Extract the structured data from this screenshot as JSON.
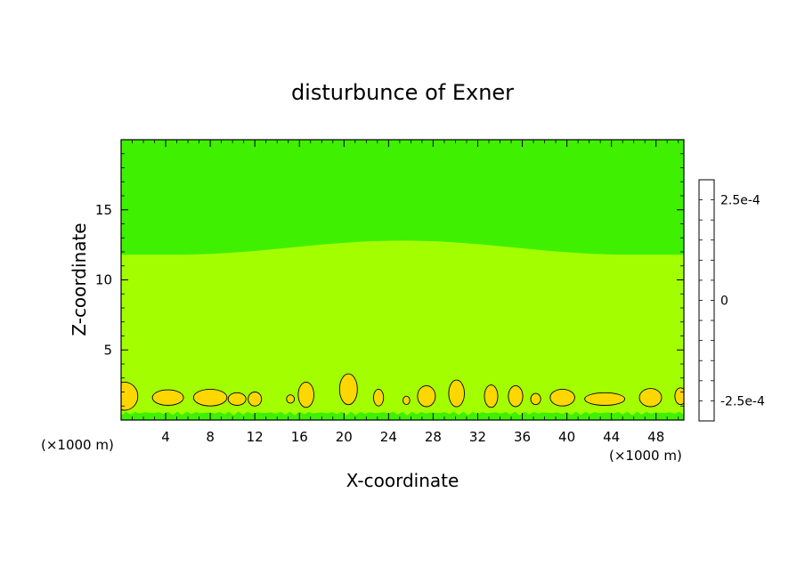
{
  "chart_data": {
    "type": "heatmap",
    "title": "disturbunce of Exner",
    "xlabel": "X-coordinate",
    "ylabel": "Z-coordinate",
    "x_unit_left": "(×1000 m)",
    "x_unit_right": "(×1000 m)",
    "xlim": [
      0,
      50.5
    ],
    "ylim": [
      0,
      20
    ],
    "x_ticks": [
      4,
      8,
      12,
      16,
      20,
      24,
      28,
      32,
      36,
      40,
      44,
      48
    ],
    "y_ticks": [
      5,
      10,
      15
    ],
    "colorbar": {
      "tick_labels": [
        "2.5e-4",
        "0",
        "-2.5e-4"
      ],
      "tick_values": [
        0.00025,
        0,
        -0.00025
      ],
      "levels": [
        -0.0003,
        -0.00025,
        -0.0002,
        -0.00015,
        -0.0001,
        -5e-05,
        0,
        5e-05,
        0.0001,
        0.00015,
        0.0002,
        0.00025,
        0.0003
      ],
      "colors": [
        "#7f18b1",
        "#1010c8",
        "#1d5cf0",
        "#13a9ef",
        "#00f0c0",
        "#16d760",
        "#3ff000",
        "#a3ff00",
        "#ffd700",
        "#ff7f00",
        "#ff2020",
        "#ff9999"
      ]
    },
    "upper_region": {
      "color": "#3ff000",
      "boundary_z_edges": 11.8,
      "boundary_z_center": 12.8
    },
    "middle_region": {
      "color": "#a3ff00"
    },
    "near_surface_band": {
      "color": "#3ff000",
      "z_max": 0.6
    },
    "positive_cells": {
      "color": "#ffd700",
      "cells": [
        {
          "x": 0.3,
          "z": 1.7,
          "rx": 1.2,
          "rz": 1.0
        },
        {
          "x": 4.2,
          "z": 1.6,
          "rx": 1.4,
          "rz": 0.55
        },
        {
          "x": 8.0,
          "z": 1.6,
          "rx": 1.5,
          "rz": 0.6
        },
        {
          "x": 10.4,
          "z": 1.5,
          "rx": 0.8,
          "rz": 0.45
        },
        {
          "x": 12.0,
          "z": 1.5,
          "rx": 0.6,
          "rz": 0.5
        },
        {
          "x": 15.2,
          "z": 1.5,
          "rx": 0.35,
          "rz": 0.3
        },
        {
          "x": 16.6,
          "z": 1.8,
          "rx": 0.7,
          "rz": 0.9
        },
        {
          "x": 20.4,
          "z": 2.2,
          "rx": 0.8,
          "rz": 1.1
        },
        {
          "x": 23.1,
          "z": 1.6,
          "rx": 0.45,
          "rz": 0.6
        },
        {
          "x": 25.6,
          "z": 1.4,
          "rx": 0.3,
          "rz": 0.3
        },
        {
          "x": 27.4,
          "z": 1.7,
          "rx": 0.8,
          "rz": 0.75
        },
        {
          "x": 30.1,
          "z": 1.9,
          "rx": 0.7,
          "rz": 0.95
        },
        {
          "x": 33.2,
          "z": 1.7,
          "rx": 0.6,
          "rz": 0.8
        },
        {
          "x": 35.4,
          "z": 1.7,
          "rx": 0.65,
          "rz": 0.75
        },
        {
          "x": 37.2,
          "z": 1.5,
          "rx": 0.45,
          "rz": 0.4
        },
        {
          "x": 39.6,
          "z": 1.6,
          "rx": 1.1,
          "rz": 0.6
        },
        {
          "x": 43.4,
          "z": 1.5,
          "rx": 1.8,
          "rz": 0.45
        },
        {
          "x": 47.5,
          "z": 1.6,
          "rx": 1.0,
          "rz": 0.65
        },
        {
          "x": 50.2,
          "z": 1.7,
          "rx": 0.5,
          "rz": 0.6
        }
      ]
    }
  }
}
